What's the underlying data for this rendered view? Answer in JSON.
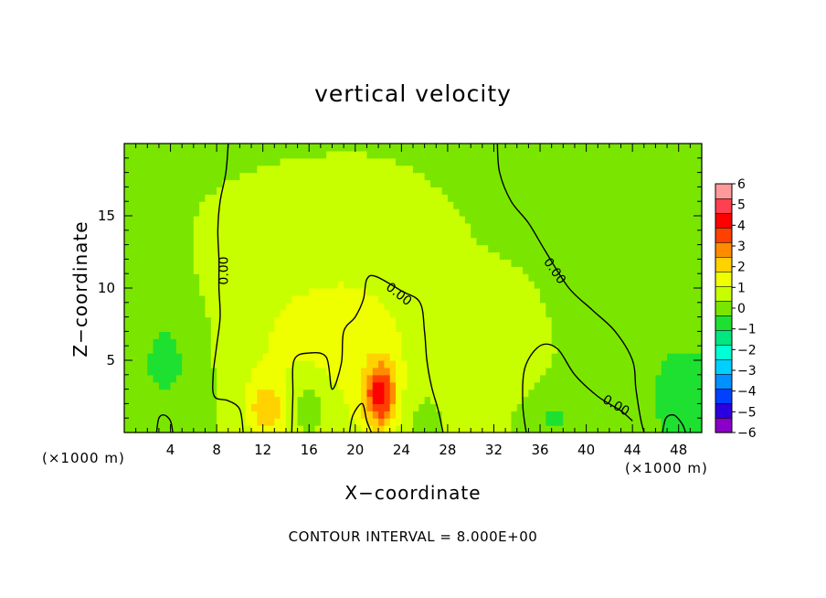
{
  "chart_data": {
    "type": "heatmap",
    "title": "vertical velocity",
    "xlabel": "X−coordinate",
    "ylabel": "Z−coordinate",
    "x_unit_left": "(×1000 m)",
    "x_unit_right": "(×1000 m)",
    "footnote": "CONTOUR INTERVAL = 8.000E+00",
    "xlim": [
      0,
      50
    ],
    "ylim": [
      0,
      20
    ],
    "x_ticks": [
      4,
      8,
      12,
      16,
      20,
      24,
      28,
      32,
      36,
      40,
      44,
      48
    ],
    "y_ticks": [
      5,
      10,
      15
    ],
    "colorbar": {
      "min": -6,
      "max": 6,
      "tick_labels": [
        "6",
        "5",
        "4",
        "3",
        "2",
        "1",
        "0",
        "−1",
        "−2",
        "−3",
        "−4",
        "−5",
        "−6"
      ],
      "colors": [
        "#8a00c8",
        "#2a00e0",
        "#0040ff",
        "#0090ff",
        "#00d0ff",
        "#00ffd4",
        "#00e680",
        "#1ee030",
        "#7ae600",
        "#c8ff00",
        "#f0ff00",
        "#ffd200",
        "#ff8c00",
        "#ff4000",
        "#ff0000",
        "#ff4050",
        "#ff9a9a"
      ]
    },
    "background_value": 0.3,
    "features": [
      {
        "x": 22.2,
        "z": 2.6,
        "sx": 1.0,
        "sz": 1.6,
        "value": 3.4
      },
      {
        "x": 12.3,
        "z": 1.6,
        "sx": 1.2,
        "sz": 1.5,
        "value": 1.6
      },
      {
        "x": 20.5,
        "z": 6.0,
        "sx": 5.0,
        "sz": 5.5,
        "value": 0.9
      },
      {
        "x": 12.0,
        "z": 7.0,
        "sx": 4.5,
        "sz": 5.0,
        "value": 0.5
      },
      {
        "x": 3.8,
        "z": 5.0,
        "sx": 2.6,
        "sz": 3.5,
        "value": -0.85
      },
      {
        "x": 48.5,
        "z": 2.5,
        "sx": 2.8,
        "sz": 3.5,
        "value": -1.0
      },
      {
        "x": 16.0,
        "z": 2.0,
        "sx": 1.4,
        "sz": 1.5,
        "value": -0.9
      },
      {
        "x": 36.5,
        "z": 1.0,
        "sx": 2.5,
        "sz": 1.5,
        "value": -0.8
      },
      {
        "x": 29.5,
        "z": 2.0,
        "sx": 2.5,
        "sz": 3.0,
        "value": 0.3
      },
      {
        "x": 26.0,
        "z": 1.5,
        "sx": 2.0,
        "sz": 2.0,
        "value": -0.5
      },
      {
        "x": 33.5,
        "z": 3.0,
        "sx": 2.0,
        "sz": 4.0,
        "value": 0.4
      }
    ],
    "contours": [
      {
        "label": "0.00",
        "label_at": [
          8.6,
          11.2
        ],
        "label_rotation": -90,
        "points": [
          [
            9.0,
            20
          ],
          [
            8.8,
            18
          ],
          [
            8.3,
            16
          ],
          [
            8.1,
            14
          ],
          [
            8.2,
            12
          ],
          [
            8.2,
            10
          ],
          [
            8.3,
            8
          ],
          [
            8.0,
            6
          ],
          [
            7.7,
            4
          ],
          [
            7.8,
            2.5
          ],
          [
            9.0,
            2.2
          ],
          [
            10.0,
            1.6
          ],
          [
            10.3,
            0
          ]
        ]
      },
      {
        "label": "0.00",
        "label_at": [
          23.8,
          9.6
        ],
        "label_rotation": 38,
        "points": [
          [
            14.5,
            0
          ],
          [
            14.6,
            2.5
          ],
          [
            14.7,
            5.0
          ],
          [
            16.0,
            5.5
          ],
          [
            17.5,
            5.2
          ],
          [
            18.0,
            3.0
          ],
          [
            18.8,
            4.8
          ],
          [
            19.0,
            7.0
          ],
          [
            20.0,
            8.0
          ],
          [
            20.7,
            9.2
          ],
          [
            21.0,
            10.6
          ],
          [
            21.8,
            10.8
          ],
          [
            24.0,
            9.8
          ],
          [
            25.6,
            9.0
          ],
          [
            26.0,
            7.0
          ],
          [
            26.2,
            5.0
          ],
          [
            26.6,
            3.2
          ],
          [
            27.2,
            1.5
          ],
          [
            27.6,
            0
          ]
        ]
      },
      {
        "label": "0.00",
        "label_at": [
          37.3,
          11.2
        ],
        "label_rotation": 55,
        "points": [
          [
            32.3,
            20
          ],
          [
            32.5,
            18
          ],
          [
            33.5,
            16
          ],
          [
            35.0,
            14.5
          ],
          [
            36.5,
            12.5
          ],
          [
            38.5,
            10.0
          ],
          [
            40.5,
            8.5
          ],
          [
            42.5,
            7.0
          ],
          [
            44.0,
            5.0
          ],
          [
            44.3,
            3.0
          ],
          [
            44.7,
            1.0
          ],
          [
            45.0,
            0
          ]
        ]
      },
      {
        "label": "0.00",
        "label_at": [
          42.6,
          1.9
        ],
        "label_rotation": 30,
        "points": [
          [
            34.8,
            0
          ],
          [
            34.5,
            2.0
          ],
          [
            34.7,
            4.5
          ],
          [
            36.0,
            6.0
          ],
          [
            37.5,
            5.8
          ],
          [
            39.0,
            4.0
          ],
          [
            41.0,
            2.5
          ],
          [
            43.0,
            1.5
          ],
          [
            44.0,
            0.8
          ]
        ]
      },
      {
        "label": "",
        "label_at": [
          0,
          0
        ],
        "label_rotation": 0,
        "points": [
          [
            2.8,
            0
          ],
          [
            3.0,
            1.0
          ],
          [
            3.5,
            1.2
          ],
          [
            4.0,
            0.8
          ],
          [
            4.2,
            0
          ]
        ]
      },
      {
        "label": "",
        "label_at": [
          0,
          0
        ],
        "label_rotation": 0,
        "points": [
          [
            19.5,
            0
          ],
          [
            19.8,
            1.2
          ],
          [
            20.6,
            2.0
          ],
          [
            21.0,
            0.8
          ],
          [
            21.4,
            0
          ]
        ]
      },
      {
        "label": "",
        "label_at": [
          0,
          0
        ],
        "label_rotation": 0,
        "points": [
          [
            46.6,
            0
          ],
          [
            46.9,
            1.0
          ],
          [
            47.6,
            1.2
          ],
          [
            48.3,
            0.6
          ],
          [
            48.6,
            0
          ]
        ]
      }
    ]
  }
}
